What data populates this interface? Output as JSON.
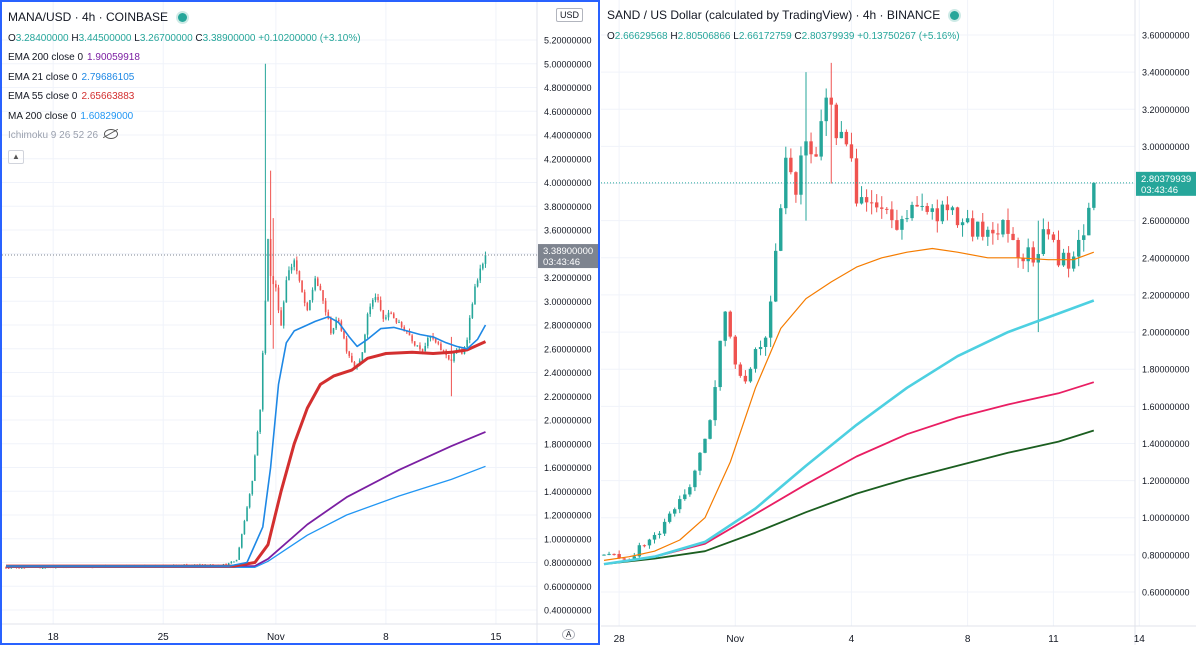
{
  "left": {
    "title": "MANA/USD · 4h · COINBASE",
    "ohlc": {
      "o": "3.28400000",
      "h": "3.44500000",
      "l": "3.26700000",
      "c": "3.38900000",
      "chg": "+0.10200000 (+3.10%)"
    },
    "indicators": [
      {
        "label": "EMA 200 close 0",
        "value": "1.90059918",
        "color": "#7b1fa2"
      },
      {
        "label": "EMA 21 close 0",
        "value": "2.79686105",
        "color": "#1e88e5"
      },
      {
        "label": "EMA 55 close 0",
        "value": "2.65663883",
        "color": "#d32f2f"
      },
      {
        "label": "MA 200 close 0",
        "value": "1.60829000",
        "color": "#2196f3"
      }
    ],
    "ichimoku": "Ichimoku 9 26 52 26",
    "currency_tag": "USD",
    "axis_top_partial": "5.",
    "price_tag": "3.38900000",
    "time_tag": "03:43:46",
    "auto_label": "A"
  },
  "right": {
    "title": "SAND / US Dollar (calculated by TradingView) · 4h · BINANCE",
    "ohlc": {
      "o": "2.66629568",
      "h": "2.80506866",
      "l": "2.66172759",
      "c": "2.80379939",
      "chg": "+0.13750267 (+5.16%)"
    },
    "price_tag": "2.80379939",
    "time_tag": "03:43:46"
  },
  "chart_data": [
    {
      "type": "candlestick",
      "symbol": "MANA/USD",
      "timeframe": "4h",
      "ylim": [
        0.3,
        5.5
      ],
      "y_ticks": [
        "0.40000000",
        "0.60000000",
        "0.80000000",
        "1.00000000",
        "1.20000000",
        "1.40000000",
        "1.60000000",
        "1.80000000",
        "2.00000000",
        "2.20000000",
        "2.40000000",
        "2.60000000",
        "2.80000000",
        "3.00000000",
        "3.20000000",
        "3.40000000",
        "3.60000000",
        "3.80000000",
        "4.00000000",
        "4.20000000",
        "4.40000000",
        "4.60000000",
        "4.80000000",
        "5.00000000",
        "5.20000000"
      ],
      "x_ticks": [
        {
          "label": "18",
          "i": 18
        },
        {
          "label": "25",
          "i": 60
        },
        {
          "label": "Nov",
          "i": 103
        },
        {
          "label": "8",
          "i": 145
        },
        {
          "label": "15",
          "i": 187
        }
      ],
      "n_bars": 184,
      "last_price": 3.389,
      "series": [
        {
          "name": "EMA 200",
          "color": "#7b1fa2",
          "width": 1.8,
          "points": [
            [
              0,
              0.77
            ],
            [
              95,
              0.77
            ],
            [
              100,
              0.83
            ],
            [
              115,
              1.12
            ],
            [
              130,
              1.35
            ],
            [
              150,
              1.58
            ],
            [
              170,
              1.78
            ],
            [
              183,
              1.9
            ]
          ]
        },
        {
          "name": "MA 200",
          "color": "#2196f3",
          "width": 1.3,
          "points": [
            [
              0,
              0.76
            ],
            [
              95,
              0.76
            ],
            [
              100,
              0.81
            ],
            [
              115,
              1.03
            ],
            [
              130,
              1.2
            ],
            [
              150,
              1.36
            ],
            [
              170,
              1.5
            ],
            [
              183,
              1.61
            ]
          ]
        },
        {
          "name": "EMA 55",
          "color": "#d32f2f",
          "width": 3,
          "points": [
            [
              0,
              0.77
            ],
            [
              87,
              0.77
            ],
            [
              95,
              0.8
            ],
            [
              100,
              0.95
            ],
            [
              105,
              1.4
            ],
            [
              110,
              1.8
            ],
            [
              115,
              2.1
            ],
            [
              120,
              2.3
            ],
            [
              125,
              2.37
            ],
            [
              132,
              2.42
            ],
            [
              138,
              2.52
            ],
            [
              145,
              2.56
            ],
            [
              155,
              2.57
            ],
            [
              163,
              2.56
            ],
            [
              170,
              2.57
            ],
            [
              176,
              2.59
            ],
            [
              183,
              2.66
            ]
          ]
        },
        {
          "name": "EMA 21",
          "color": "#1e88e5",
          "width": 1.6,
          "points": [
            [
              0,
              0.77
            ],
            [
              85,
              0.77
            ],
            [
              92,
              0.8
            ],
            [
              98,
              1.1
            ],
            [
              101,
              1.6
            ],
            [
              104,
              2.3
            ],
            [
              107,
              2.65
            ],
            [
              110,
              2.75
            ],
            [
              115,
              2.8
            ],
            [
              118,
              2.83
            ],
            [
              123,
              2.87
            ],
            [
              127,
              2.82
            ],
            [
              131,
              2.7
            ],
            [
              134,
              2.62
            ],
            [
              138,
              2.68
            ],
            [
              143,
              2.77
            ],
            [
              148,
              2.78
            ],
            [
              153,
              2.75
            ],
            [
              158,
              2.72
            ],
            [
              163,
              2.7
            ],
            [
              168,
              2.65
            ],
            [
              172,
              2.62
            ],
            [
              176,
              2.6
            ],
            [
              180,
              2.68
            ],
            [
              183,
              2.8
            ]
          ]
        }
      ],
      "candle_path": [
        [
          0,
          0.76
        ],
        [
          20,
          0.76
        ],
        [
          40,
          0.77
        ],
        [
          60,
          0.77
        ],
        [
          75,
          0.78
        ],
        [
          84,
          0.78
        ],
        [
          88,
          0.82
        ],
        [
          91,
          1.15
        ],
        [
          94,
          1.5
        ],
        [
          97,
          2.1
        ],
        [
          99,
          3.0
        ],
        [
          100,
          3.55
        ],
        [
          101,
          3.2
        ],
        [
          103,
          3.1
        ],
        [
          105,
          2.8
        ],
        [
          107,
          3.2
        ],
        [
          110,
          3.35
        ],
        [
          112,
          3.15
        ],
        [
          115,
          2.9
        ],
        [
          118,
          3.2
        ],
        [
          121,
          3.0
        ],
        [
          124,
          2.75
        ],
        [
          127,
          2.85
        ],
        [
          130,
          2.6
        ],
        [
          133,
          2.45
        ],
        [
          136,
          2.55
        ],
        [
          138,
          2.9
        ],
        [
          141,
          3.05
        ],
        [
          144,
          2.85
        ],
        [
          147,
          2.9
        ],
        [
          150,
          2.8
        ],
        [
          153,
          2.75
        ],
        [
          156,
          2.65
        ],
        [
          159,
          2.6
        ],
        [
          162,
          2.7
        ],
        [
          165,
          2.62
        ],
        [
          168,
          2.55
        ],
        [
          170,
          2.5
        ],
        [
          172,
          2.6
        ],
        [
          174,
          2.55
        ],
        [
          176,
          2.7
        ],
        [
          178,
          3.0
        ],
        [
          180,
          3.2
        ],
        [
          182,
          3.3
        ],
        [
          183,
          3.389
        ]
      ],
      "spikes": [
        {
          "i": 99,
          "high": 5.0,
          "low": 2.7
        },
        {
          "i": 101,
          "high": 4.1,
          "low": 2.8
        },
        {
          "i": 102,
          "high": 3.7,
          "low": 2.6
        },
        {
          "i": 170,
          "high": 2.7,
          "low": 2.2
        }
      ]
    },
    {
      "type": "candlestick",
      "symbol": "SAND / US Dollar",
      "timeframe": "4h",
      "ylim": [
        0.5,
        3.7
      ],
      "y_ticks": [
        "0.60000000",
        "0.80000000",
        "1.00000000",
        "1.20000000",
        "1.40000000",
        "1.60000000",
        "1.80000000",
        "2.00000000",
        "2.20000000",
        "2.40000000",
        "2.60000000",
        "2.80000000",
        "3.00000000",
        "3.20000000",
        "3.40000000",
        "3.60000000"
      ],
      "x_ticks": [
        {
          "label": "28",
          "i": 3
        },
        {
          "label": "Nov",
          "i": 26
        },
        {
          "label": "4",
          "i": 49
        },
        {
          "label": "8",
          "i": 72
        },
        {
          "label": "11",
          "i": 89
        },
        {
          "label": "14",
          "i": 106
        }
      ],
      "n_bars": 98,
      "last_price": 2.8038,
      "series": [
        {
          "name": "EMA 200 (green)",
          "color": "#1b5e20",
          "width": 1.8,
          "points": [
            [
              0,
              0.75
            ],
            [
              10,
              0.78
            ],
            [
              20,
              0.82
            ],
            [
              30,
              0.92
            ],
            [
              40,
              1.03
            ],
            [
              50,
              1.13
            ],
            [
              60,
              1.21
            ],
            [
              70,
              1.28
            ],
            [
              80,
              1.35
            ],
            [
              90,
              1.41
            ],
            [
              97,
              1.47
            ]
          ]
        },
        {
          "name": "MA (magenta)",
          "color": "#e91e63",
          "width": 1.8,
          "points": [
            [
              0,
              0.75
            ],
            [
              10,
              0.79
            ],
            [
              20,
              0.86
            ],
            [
              30,
              1.02
            ],
            [
              40,
              1.18
            ],
            [
              50,
              1.33
            ],
            [
              60,
              1.45
            ],
            [
              70,
              1.54
            ],
            [
              80,
              1.61
            ],
            [
              90,
              1.67
            ],
            [
              97,
              1.73
            ]
          ]
        },
        {
          "name": "EMA (cyan)",
          "color": "#4dd0e1",
          "width": 2.6,
          "points": [
            [
              0,
              0.75
            ],
            [
              10,
              0.79
            ],
            [
              20,
              0.87
            ],
            [
              30,
              1.05
            ],
            [
              40,
              1.28
            ],
            [
              50,
              1.5
            ],
            [
              60,
              1.7
            ],
            [
              70,
              1.87
            ],
            [
              80,
              2.0
            ],
            [
              90,
              2.1
            ],
            [
              97,
              2.17
            ]
          ]
        },
        {
          "name": "EMA (orange)",
          "color": "#f57c00",
          "width": 1.2,
          "points": [
            [
              0,
              0.77
            ],
            [
              5,
              0.79
            ],
            [
              10,
              0.82
            ],
            [
              15,
              0.88
            ],
            [
              20,
              1.0
            ],
            [
              25,
              1.3
            ],
            [
              30,
              1.7
            ],
            [
              35,
              2.02
            ],
            [
              40,
              2.18
            ],
            [
              45,
              2.27
            ],
            [
              50,
              2.35
            ],
            [
              55,
              2.4
            ],
            [
              60,
              2.43
            ],
            [
              65,
              2.45
            ],
            [
              70,
              2.43
            ],
            [
              76,
              2.4
            ],
            [
              82,
              2.4
            ],
            [
              88,
              2.39
            ],
            [
              93,
              2.39
            ],
            [
              97,
              2.43
            ]
          ]
        }
      ],
      "candle_path": [
        [
          0,
          0.8
        ],
        [
          5,
          0.78
        ],
        [
          8,
          0.86
        ],
        [
          11,
          0.92
        ],
        [
          14,
          1.05
        ],
        [
          17,
          1.18
        ],
        [
          20,
          1.4
        ],
        [
          22,
          1.7
        ],
        [
          24,
          2.15
        ],
        [
          26,
          1.85
        ],
        [
          28,
          1.75
        ],
        [
          30,
          1.9
        ],
        [
          32,
          2.0
        ],
        [
          34,
          2.4
        ],
        [
          36,
          2.9
        ],
        [
          38,
          2.8
        ],
        [
          40,
          3.05
        ],
        [
          42,
          2.9
        ],
        [
          44,
          3.3
        ],
        [
          46,
          3.1
        ],
        [
          48,
          3.0
        ],
        [
          50,
          2.75
        ],
        [
          52,
          2.7
        ],
        [
          55,
          2.65
        ],
        [
          58,
          2.55
        ],
        [
          61,
          2.7
        ],
        [
          64,
          2.62
        ],
        [
          67,
          2.65
        ],
        [
          70,
          2.6
        ],
        [
          73,
          2.55
        ],
        [
          76,
          2.52
        ],
        [
          79,
          2.6
        ],
        [
          82,
          2.45
        ],
        [
          85,
          2.4
        ],
        [
          88,
          2.55
        ],
        [
          90,
          2.4
        ],
        [
          92,
          2.35
        ],
        [
          94,
          2.45
        ],
        [
          96,
          2.66
        ],
        [
          97,
          2.804
        ]
      ],
      "spikes": [
        {
          "i": 40,
          "high": 3.4,
          "low": 2.6
        },
        {
          "i": 45,
          "high": 3.45,
          "low": 2.8
        },
        {
          "i": 86,
          "high": 2.6,
          "low": 2.0
        }
      ]
    }
  ]
}
